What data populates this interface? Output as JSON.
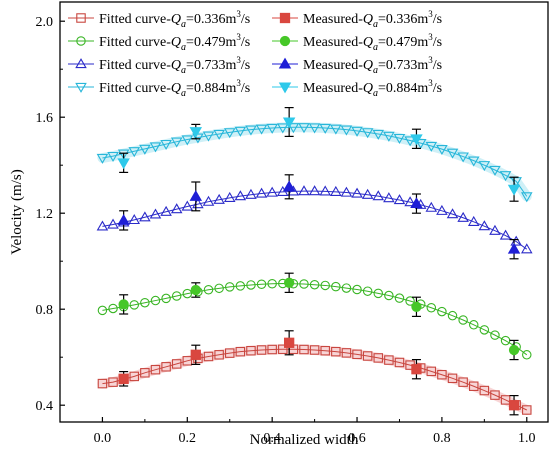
{
  "chart_data": {
    "type": "scatter",
    "xlabel": "Normalized width",
    "ylabel": "Velocity (m/s)",
    "xlim": [
      -0.1,
      1.05
    ],
    "ylim": [
      0.33,
      2.08
    ],
    "xticks": [
      0.0,
      0.2,
      0.4,
      0.6,
      0.8,
      1.0
    ],
    "yticks": [
      0.4,
      0.8,
      1.2,
      1.6,
      2.0
    ],
    "xtick_labels": [
      "0.0",
      "0.2",
      "0.4",
      "0.6",
      "0.8",
      "1.0"
    ],
    "ytick_labels": [
      "0.4",
      "0.8",
      "1.2",
      "1.6",
      "2.0"
    ],
    "grid": false,
    "legend_placement": "top",
    "legend_ncols": 2,
    "flow_unit": "m",
    "flow_unit_exp": "3",
    "flow_unit_tail": "/s",
    "series": [
      {
        "legend_prefix": "Fitted curve-",
        "legend_symbol": "Q",
        "legend_subscript": "a",
        "legend_value": "=0.336",
        "kind": "fitted",
        "marker": "square-open",
        "color": "#c8463f",
        "band_color": "#f2b3b5",
        "x": [
          0.0,
          0.025,
          0.05,
          0.075,
          0.1,
          0.125,
          0.15,
          0.175,
          0.2,
          0.225,
          0.25,
          0.275,
          0.3,
          0.325,
          0.35,
          0.375,
          0.4,
          0.425,
          0.45,
          0.475,
          0.5,
          0.525,
          0.55,
          0.575,
          0.6,
          0.625,
          0.65,
          0.675,
          0.7,
          0.725,
          0.75,
          0.775,
          0.8,
          0.825,
          0.85,
          0.875,
          0.9,
          0.925,
          0.95,
          0.975,
          1.0
        ],
        "y": [
          0.49,
          0.496,
          0.508,
          0.52,
          0.535,
          0.548,
          0.56,
          0.572,
          0.585,
          0.595,
          0.603,
          0.61,
          0.617,
          0.623,
          0.627,
          0.63,
          0.632,
          0.633,
          0.633,
          0.632,
          0.63,
          0.627,
          0.623,
          0.618,
          0.612,
          0.605,
          0.597,
          0.588,
          0.578,
          0.567,
          0.555,
          0.541,
          0.527,
          0.512,
          0.496,
          0.479,
          0.461,
          0.442,
          0.422,
          0.401,
          0.38
        ]
      },
      {
        "legend_prefix": "Measured-",
        "legend_symbol": "Q",
        "legend_subscript": "a",
        "legend_value": "=0.336",
        "kind": "measured",
        "marker": "square-filled",
        "color": "#d9473f",
        "x": [
          0.05,
          0.22,
          0.44,
          0.74,
          0.97
        ],
        "y": [
          0.51,
          0.61,
          0.66,
          0.55,
          0.4
        ],
        "err": [
          0.03,
          0.04,
          0.05,
          0.04,
          0.04
        ]
      },
      {
        "legend_prefix": "Fitted curve-",
        "legend_symbol": "Q",
        "legend_subscript": "a",
        "legend_value": "=0.479",
        "kind": "fitted",
        "marker": "circle-open",
        "color": "#39b524",
        "x": [
          0.0,
          0.025,
          0.05,
          0.075,
          0.1,
          0.125,
          0.15,
          0.175,
          0.2,
          0.225,
          0.25,
          0.275,
          0.3,
          0.325,
          0.35,
          0.375,
          0.4,
          0.425,
          0.45,
          0.475,
          0.5,
          0.525,
          0.55,
          0.575,
          0.6,
          0.625,
          0.65,
          0.675,
          0.7,
          0.725,
          0.75,
          0.775,
          0.8,
          0.825,
          0.85,
          0.875,
          0.9,
          0.925,
          0.95,
          0.975,
          1.0
        ],
        "y": [
          0.795,
          0.803,
          0.81,
          0.818,
          0.827,
          0.836,
          0.845,
          0.855,
          0.865,
          0.873,
          0.881,
          0.887,
          0.893,
          0.897,
          0.901,
          0.904,
          0.906,
          0.907,
          0.906,
          0.905,
          0.902,
          0.899,
          0.894,
          0.888,
          0.882,
          0.875,
          0.866,
          0.857,
          0.846,
          0.834,
          0.821,
          0.806,
          0.79,
          0.773,
          0.755,
          0.735,
          0.714,
          0.692,
          0.669,
          0.643,
          0.61
        ]
      },
      {
        "legend_prefix": "Measured-",
        "legend_symbol": "Q",
        "legend_subscript": "a",
        "legend_value": "=0.479",
        "kind": "measured",
        "marker": "circle-filled",
        "color": "#46c728",
        "x": [
          0.05,
          0.22,
          0.44,
          0.74,
          0.97
        ],
        "y": [
          0.82,
          0.88,
          0.91,
          0.81,
          0.63
        ],
        "err": [
          0.04,
          0.03,
          0.04,
          0.04,
          0.04
        ]
      },
      {
        "legend_prefix": "Fitted curve-",
        "legend_symbol": "Q",
        "legend_subscript": "a",
        "legend_value": "=0.733",
        "kind": "fitted",
        "marker": "triangle-up-open",
        "color": "#2b2bc9",
        "x": [
          0.0,
          0.025,
          0.05,
          0.075,
          0.1,
          0.125,
          0.15,
          0.175,
          0.2,
          0.225,
          0.25,
          0.275,
          0.3,
          0.325,
          0.35,
          0.375,
          0.4,
          0.425,
          0.45,
          0.475,
          0.5,
          0.525,
          0.55,
          0.575,
          0.6,
          0.625,
          0.65,
          0.675,
          0.7,
          0.725,
          0.75,
          0.775,
          0.8,
          0.825,
          0.85,
          0.875,
          0.9,
          0.925,
          0.95,
          0.975,
          1.0
        ],
        "y": [
          1.145,
          1.153,
          1.162,
          1.172,
          1.183,
          1.195,
          1.206,
          1.217,
          1.228,
          1.238,
          1.248,
          1.256,
          1.264,
          1.271,
          1.277,
          1.282,
          1.286,
          1.289,
          1.291,
          1.292,
          1.292,
          1.291,
          1.289,
          1.286,
          1.282,
          1.277,
          1.271,
          1.263,
          1.255,
          1.246,
          1.235,
          1.223,
          1.21,
          1.196,
          1.181,
          1.164,
          1.146,
          1.127,
          1.107,
          1.082,
          1.05
        ]
      },
      {
        "legend_prefix": "Measured-",
        "legend_symbol": "Q",
        "legend_subscript": "a",
        "legend_value": "=0.733",
        "kind": "measured",
        "marker": "triangle-up-filled",
        "color": "#1f1fd6",
        "x": [
          0.05,
          0.22,
          0.44,
          0.74,
          0.97
        ],
        "y": [
          1.17,
          1.27,
          1.31,
          1.24,
          1.05
        ],
        "err": [
          0.04,
          0.06,
          0.05,
          0.04,
          0.04
        ]
      },
      {
        "legend_prefix": "Fitted curve-",
        "legend_symbol": "Q",
        "legend_subscript": "a",
        "legend_value": "=0.884",
        "kind": "fitted",
        "marker": "triangle-down-open",
        "color": "#27b6d9",
        "band_color": "#a8e4f0",
        "x": [
          0.0,
          0.025,
          0.05,
          0.075,
          0.1,
          0.125,
          0.15,
          0.175,
          0.2,
          0.225,
          0.25,
          0.275,
          0.3,
          0.325,
          0.35,
          0.375,
          0.4,
          0.425,
          0.45,
          0.475,
          0.5,
          0.525,
          0.55,
          0.575,
          0.6,
          0.625,
          0.65,
          0.675,
          0.7,
          0.725,
          0.75,
          0.775,
          0.8,
          0.825,
          0.85,
          0.875,
          0.9,
          0.925,
          0.95,
          0.975,
          1.0
        ],
        "y": [
          1.43,
          1.438,
          1.448,
          1.458,
          1.468,
          1.478,
          1.488,
          1.498,
          1.507,
          1.515,
          1.523,
          1.53,
          1.537,
          1.543,
          1.548,
          1.552,
          1.555,
          1.557,
          1.558,
          1.558,
          1.557,
          1.555,
          1.552,
          1.548,
          1.543,
          1.537,
          1.53,
          1.522,
          1.513,
          1.503,
          1.492,
          1.48,
          1.467,
          1.452,
          1.436,
          1.419,
          1.4,
          1.38,
          1.358,
          1.333,
          1.27
        ]
      },
      {
        "legend_prefix": "Measured-",
        "legend_symbol": "Q",
        "legend_subscript": "a",
        "legend_value": "=0.884",
        "kind": "measured",
        "marker": "triangle-down-filled",
        "color": "#2ec9ea",
        "x": [
          0.05,
          0.22,
          0.44,
          0.74,
          0.97
        ],
        "y": [
          1.41,
          1.54,
          1.58,
          1.51,
          1.3
        ],
        "err": [
          0.04,
          0.03,
          0.06,
          0.04,
          0.05
        ]
      }
    ]
  }
}
